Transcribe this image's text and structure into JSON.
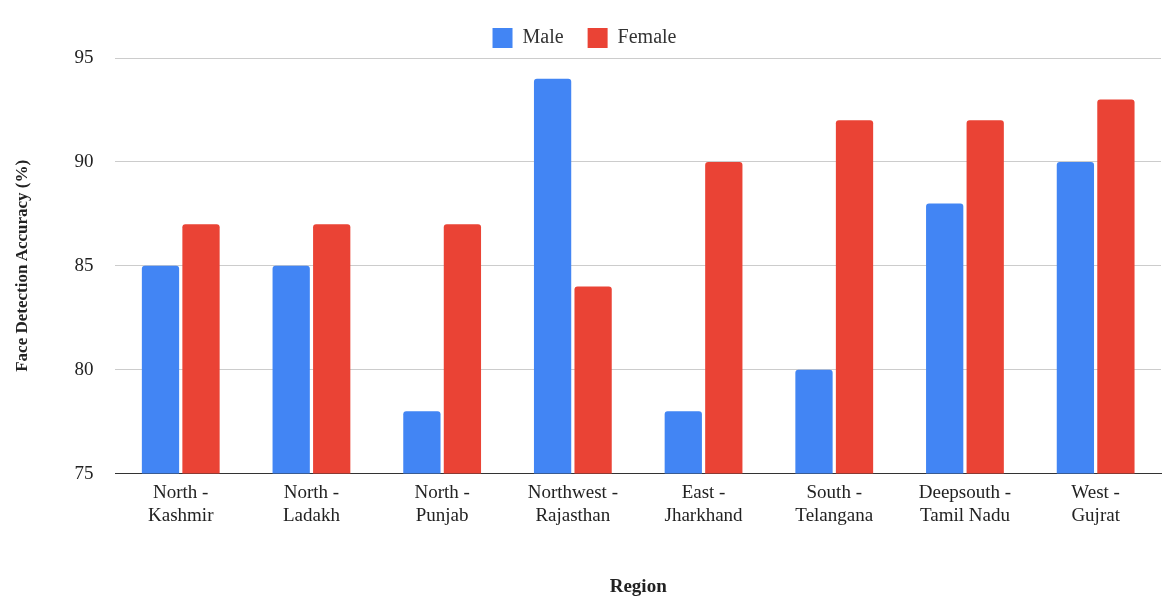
{
  "chart_data": {
    "type": "bar",
    "xlabel": "Region",
    "ylabel": "Face Detection Accuracy (%)",
    "categories": [
      "North - Kashmir",
      "North - Ladakh",
      "North - Punjab",
      "Northwest - Rajasthan",
      "East - Jharkhand",
      "South - Telangana",
      "Deepsouth - Tamil Nadu",
      "West - Gujrat"
    ],
    "series": [
      {
        "name": "Male",
        "color": "#4285f4",
        "values": [
          85,
          85,
          78,
          94,
          78,
          80,
          88,
          90
        ]
      },
      {
        "name": "Female",
        "color": "#ea4335",
        "values": [
          87,
          87,
          87,
          84,
          90,
          92,
          92,
          93
        ]
      }
    ],
    "ylim": [
      75,
      95
    ],
    "yticks": [
      75,
      80,
      85,
      90,
      95
    ],
    "grid": "y",
    "legend": "top"
  }
}
